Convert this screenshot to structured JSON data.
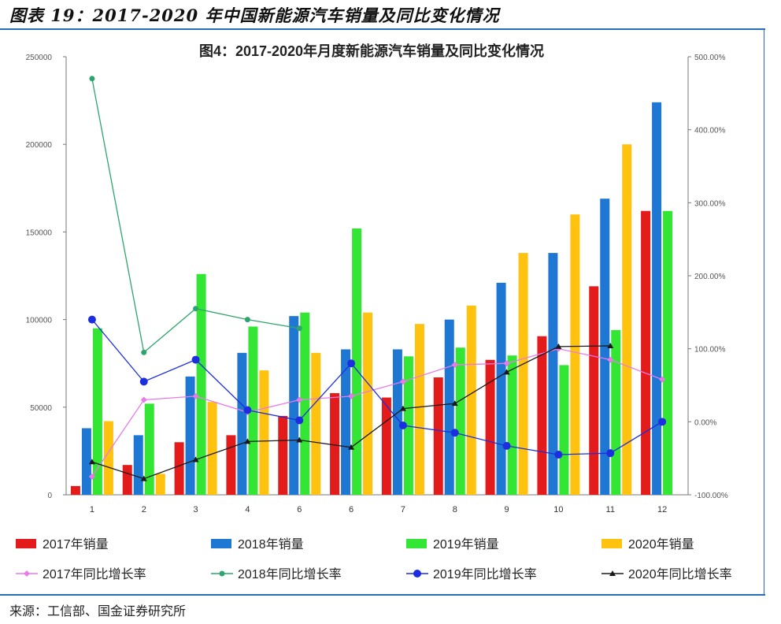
{
  "figure_title": "图表 19：2017-2020 年中国新能源汽车销量及同比变化情况",
  "source": "来源：工信部、国金证券研究所",
  "colors": {
    "s2017": "#e31b1b",
    "s2018": "#1f77d4",
    "s2019": "#33e633",
    "s2020": "#ffc20e",
    "r2017": "#e87be8",
    "r2018": "#2ea56e",
    "r2019": "#1c2ee0",
    "r2020": "#1a1a1a",
    "rule": "#2b6cb8"
  },
  "chart_data": {
    "type": "bar",
    "title": "图4：2017-2020年月度新能源汽车销量及同比变化情况",
    "categories": [
      "1",
      "2",
      "3",
      "4",
      "6",
      "6",
      "7",
      "8",
      "9",
      "10",
      "11",
      "12"
    ],
    "y_left": {
      "ticks": [
        "0",
        "50000",
        "100000",
        "150000",
        "200000",
        "250000"
      ],
      "range": [
        0,
        250000
      ]
    },
    "y_right": {
      "ticks": [
        "-100.00%",
        "0.00%",
        "100.00%",
        "200.00%",
        "300.00%",
        "400.00%",
        "500.00%"
      ],
      "range": [
        -100,
        500
      ]
    },
    "series": [
      {
        "name": "2017年销量",
        "kind": "bar",
        "color_key": "s2017",
        "values": [
          5000,
          17000,
          30000,
          34000,
          45000,
          58000,
          55500,
          67000,
          77000,
          90500,
          119000,
          162000
        ]
      },
      {
        "name": "2018年销量",
        "kind": "bar",
        "color_key": "s2018",
        "values": [
          38000,
          34000,
          67500,
          81000,
          102000,
          83000,
          83000,
          100000,
          121000,
          138000,
          169000,
          224000
        ]
      },
      {
        "name": "2019年销量",
        "kind": "bar",
        "color_key": "s2019",
        "values": [
          95000,
          52000,
          126000,
          96000,
          104000,
          152000,
          79000,
          84000,
          79500,
          74000,
          94000,
          162000
        ]
      },
      {
        "name": "2020年销量",
        "kind": "bar",
        "color_key": "s2020",
        "values": [
          42000,
          12000,
          53000,
          71000,
          81000,
          104000,
          97500,
          108000,
          138000,
          160000,
          200000,
          null
        ]
      },
      {
        "name": "2017年同比增长率",
        "kind": "line",
        "color_key": "r2017",
        "marker": "diamond",
        "values": [
          -75,
          30,
          35,
          13,
          30,
          35,
          55,
          78,
          80,
          100,
          85,
          58
        ]
      },
      {
        "name": "2018年同比增长率",
        "kind": "line",
        "color_key": "r2018",
        "marker": "dot",
        "values": [
          470,
          95,
          155,
          140,
          128,
          null,
          null,
          null,
          null,
          null,
          null,
          null
        ]
      },
      {
        "name": "2019年同比增长率",
        "kind": "line",
        "color_key": "r2019",
        "marker": "bigdot",
        "values": [
          140,
          55,
          85,
          16,
          2,
          80,
          -5,
          -15,
          -33,
          -45,
          -43,
          0
        ]
      },
      {
        "name": "2020年同比增长率",
        "kind": "line",
        "color_key": "r2020",
        "marker": "triangle",
        "values": [
          -55,
          -78,
          -52,
          -27,
          -25,
          -35,
          18,
          25,
          68,
          103,
          104,
          null
        ]
      }
    ],
    "legend_position": "bottom"
  }
}
